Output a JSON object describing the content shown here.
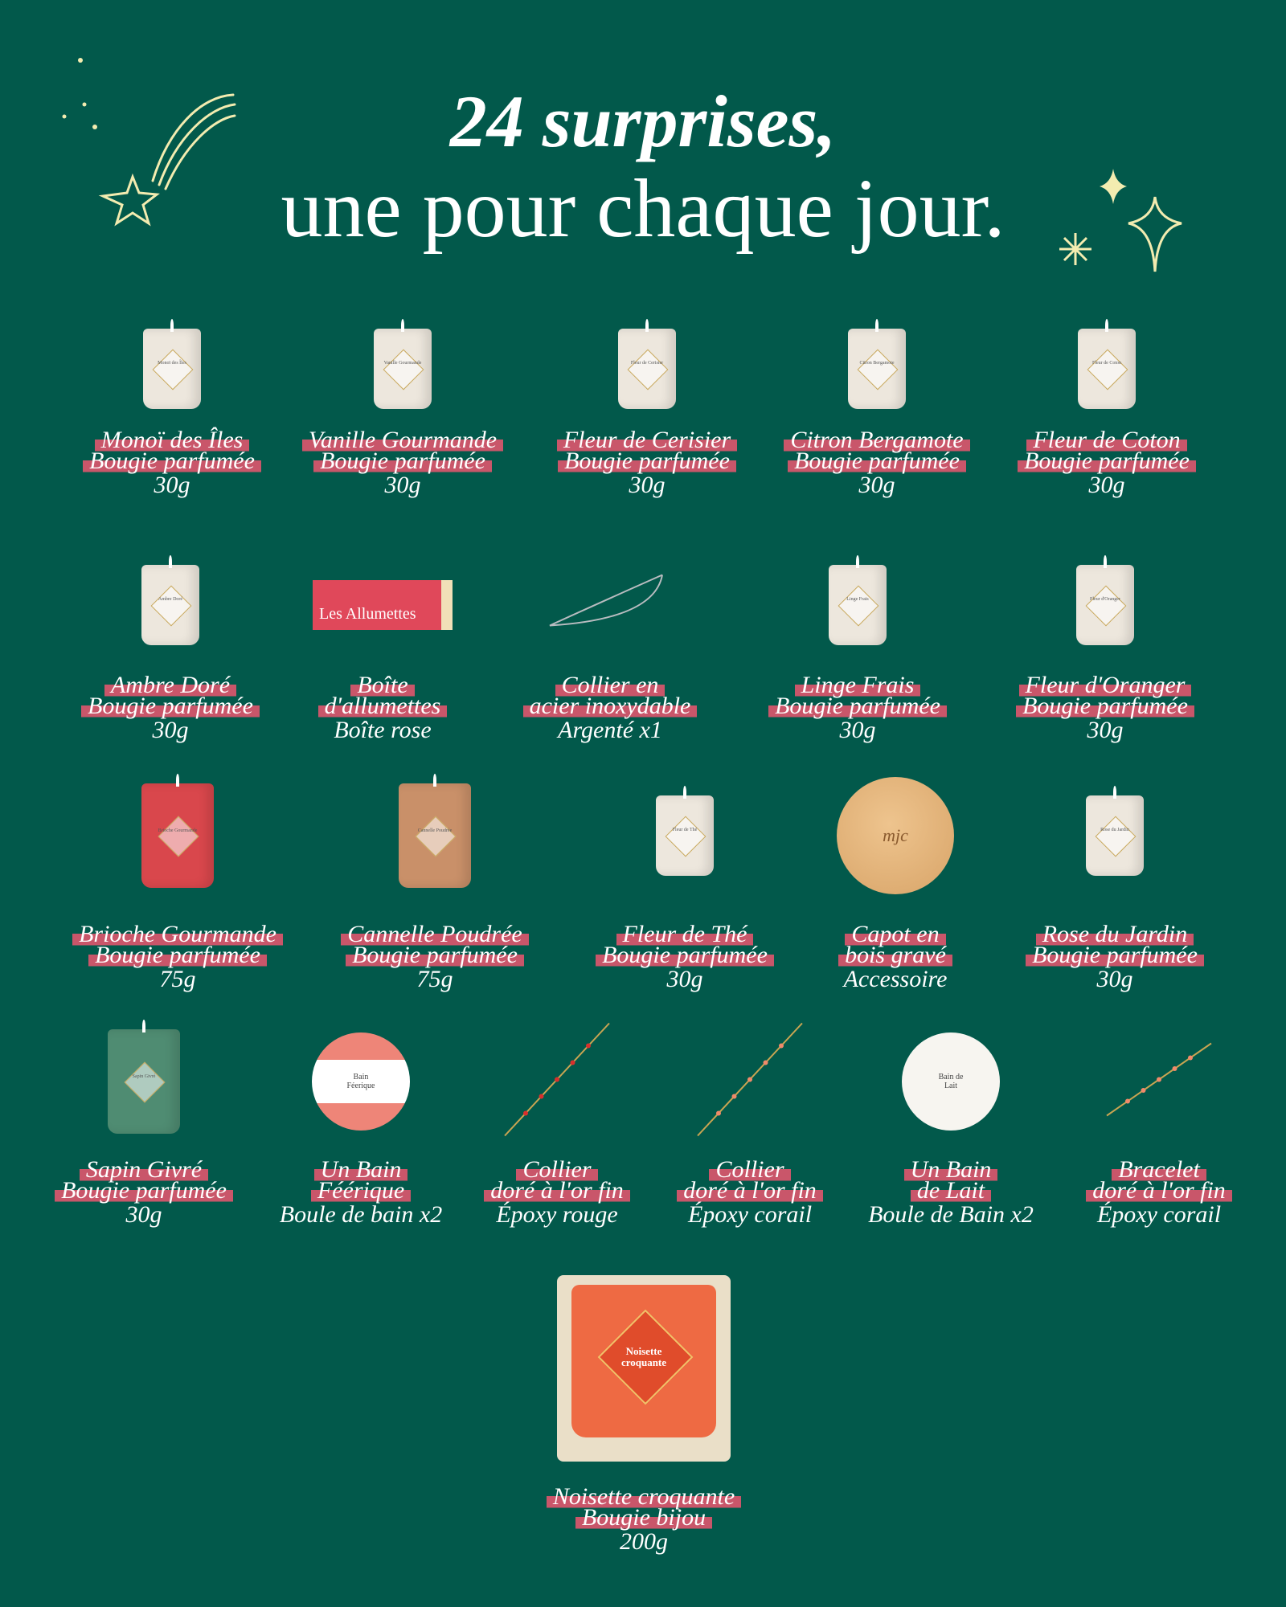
{
  "header": {
    "line1": "24 surprises,",
    "line2": "une pour chaque jour."
  },
  "colors": {
    "background": "#02594b",
    "highlight": "#c9566a",
    "decor": "#f3ecb0"
  },
  "rows": [
    [
      {
        "image": "candle-white",
        "label_text": "Monoï des Îles",
        "lines": [
          "Monoï des Îles",
          "Bougie parfumée",
          "30g"
        ]
      },
      {
        "image": "candle-white",
        "label_text": "Vanille Gourmande",
        "lines": [
          "Vanille Gourmande",
          "Bougie parfumée",
          "30g"
        ]
      },
      {
        "image": "candle-white",
        "label_text": "Fleur de Cerisier",
        "lines": [
          "Fleur de Cerisier",
          "Bougie parfumée",
          "30g"
        ]
      },
      {
        "image": "candle-white",
        "label_text": "Citron Bergamote",
        "lines": [
          "Citron Bergamote",
          "Bougie parfumée",
          "30g"
        ]
      },
      {
        "image": "candle-white",
        "label_text": "Fleur de Coton",
        "lines": [
          "Fleur de Coton",
          "Bougie parfumée",
          "30g"
        ]
      }
    ],
    [
      {
        "image": "candle-white",
        "label_text": "Ambre Doré",
        "lines": [
          "Ambre Doré",
          "Bougie parfumée",
          "30g"
        ]
      },
      {
        "image": "matchbox",
        "label_text": "Les Allumettes",
        "lines": [
          "Boîte",
          "d'allumettes",
          "Boîte rose"
        ]
      },
      {
        "image": "necklace-silver",
        "label_text": "",
        "lines": [
          "Collier en",
          "acier inoxydable",
          "Argenté x1"
        ]
      },
      {
        "image": "candle-white",
        "label_text": "Linge Frais",
        "lines": [
          "Linge Frais",
          "Bougie parfumée",
          "30g"
        ]
      },
      {
        "image": "candle-white",
        "label_text": "Fleur d'Oranger",
        "lines": [
          "Fleur d'Oranger",
          "Bougie parfumée",
          "30g"
        ]
      }
    ],
    [
      {
        "image": "candle-red",
        "label_text": "Brioche Gourmande",
        "lines": [
          "Brioche Gourmande",
          "Bougie parfumée",
          "75g"
        ]
      },
      {
        "image": "candle-tan",
        "label_text": "Cannelle Poudrée",
        "lines": [
          "Cannelle Poudrée",
          "Bougie parfumée",
          "75g"
        ]
      },
      {
        "image": "candle-white",
        "label_text": "Fleur de Thé",
        "lines": [
          "Fleur de Thé",
          "Bougie parfumée",
          "30g"
        ]
      },
      {
        "image": "wood-lid",
        "label_text": "mjc",
        "lines": [
          "Capot en",
          "bois gravé",
          "Accessoire"
        ]
      },
      {
        "image": "candle-white",
        "label_text": "Rose du Jardin",
        "lines": [
          "Rose du Jardin",
          "Bougie parfumée",
          "30g"
        ]
      }
    ],
    [
      {
        "image": "candle-green",
        "label_text": "Sapin Givré",
        "lines": [
          "Sapin Givré",
          "Bougie parfumée",
          "30g"
        ]
      },
      {
        "image": "bath-ball-pink",
        "label_text": "Bain Féerique",
        "lines": [
          "Un Bain",
          "Féérique",
          "Boule de bain x2"
        ]
      },
      {
        "image": "necklace-red",
        "label_text": "",
        "lines": [
          "Collier",
          "doré à l'or fin",
          "Époxy rouge"
        ]
      },
      {
        "image": "necklace-coral",
        "label_text": "",
        "lines": [
          "Collier",
          "doré à l'or fin",
          "Époxy corail"
        ]
      },
      {
        "image": "bath-ball-white",
        "label_text": "Bain de Lait",
        "lines": [
          "Un Bain",
          "de Lait",
          "Boule de Bain x2"
        ]
      },
      {
        "image": "bracelet-coral",
        "label_text": "",
        "lines": [
          "Bracelet",
          "doré à l'or fin",
          "Époxy corail"
        ]
      }
    ],
    [
      {
        "image": "jewel-candle-orange",
        "label_text": "Noisette croquante",
        "lines": [
          "Noisette croquante",
          "Bougie bijou",
          "200g"
        ]
      }
    ]
  ]
}
